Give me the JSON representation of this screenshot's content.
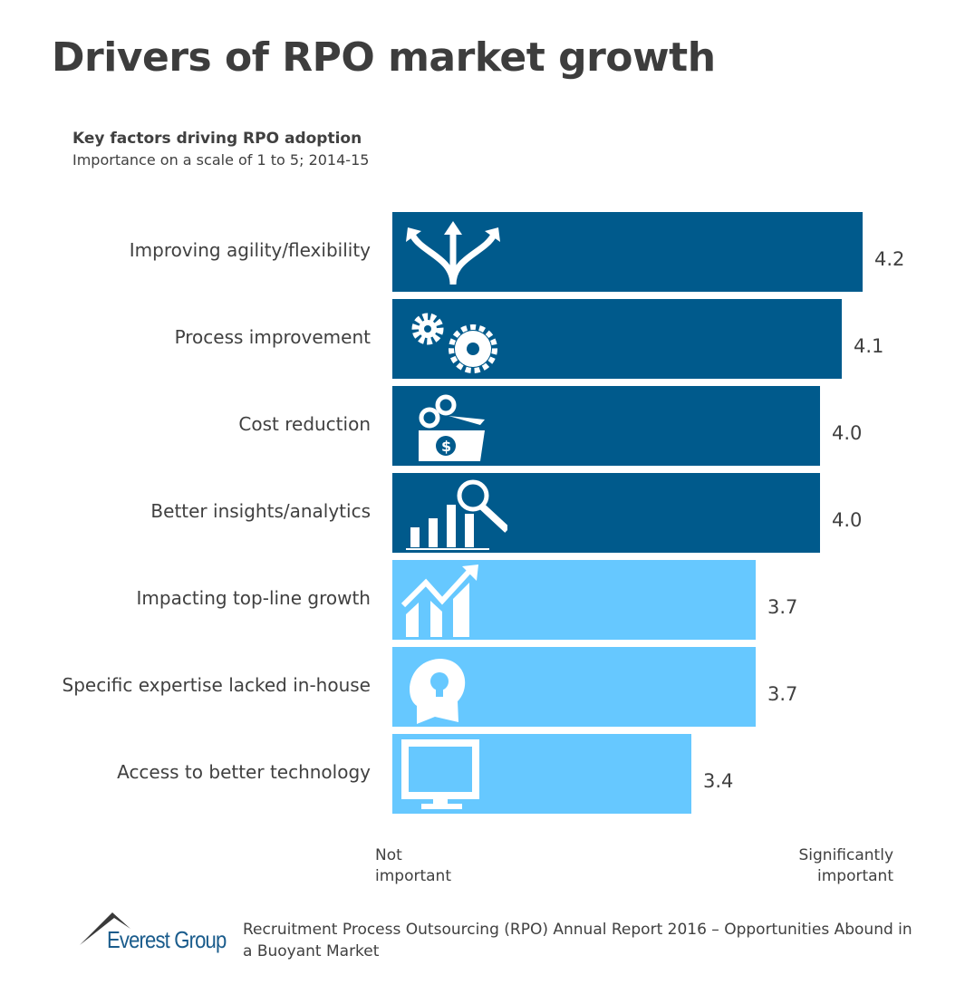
{
  "title": "Drivers of RPO market growth",
  "chart_data": {
    "type": "bar",
    "orientation": "horizontal",
    "title": "Key factors driving RPO adoption",
    "subtitle": "Importance on a scale of 1 to 5; 2014-15",
    "categories": [
      "Improving agility/flexibility",
      "Process improvement",
      "Cost reduction",
      "Better insights/analytics",
      "Impacting top-line growth",
      "Specific expertise lacked in-house",
      "Access to better technology"
    ],
    "values": [
      4.2,
      4.1,
      4.0,
      4.0,
      3.7,
      3.7,
      3.4
    ],
    "value_labels": [
      "4.2",
      "4.1",
      "4.0",
      "4.0",
      "3.7",
      "3.7",
      "3.4"
    ],
    "icons": [
      "split-arrows-icon",
      "gears-icon",
      "scissors-money-icon",
      "bar-chart-magnifier-icon",
      "growth-chart-icon",
      "head-lightbulb-icon",
      "monitor-icon"
    ],
    "bar_colors": [
      "#005a8c",
      "#005a8c",
      "#005a8c",
      "#005a8c",
      "#66c8ff",
      "#66c8ff",
      "#66c8ff"
    ],
    "axis_left_label": "Not important",
    "axis_right_label": "Significantly important",
    "legend": "none",
    "grid": false
  },
  "footer": {
    "logo": "Everest Group",
    "source": "Recruitment Process Outsourcing (RPO) Annual Report 2016 – Opportunities Abound in a Buoyant Market"
  }
}
